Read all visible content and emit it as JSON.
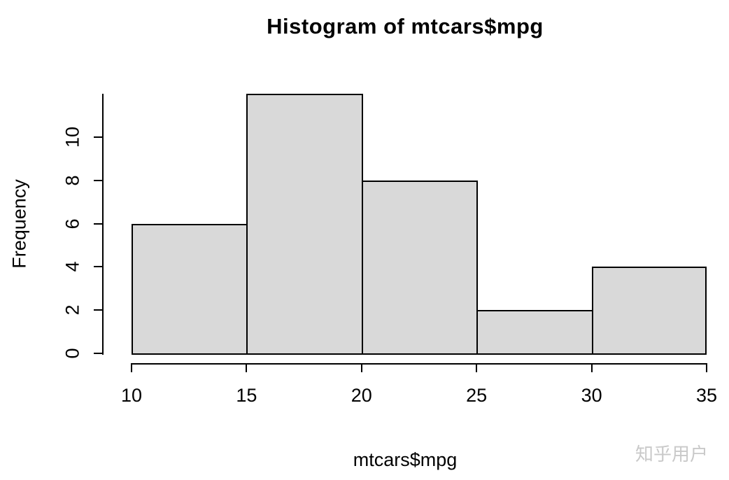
{
  "chart_data": {
    "type": "bar",
    "title": "Histogram of mtcars$mpg",
    "xlabel": "mtcars$mpg",
    "ylabel": "Frequency",
    "bins": [
      {
        "start": 10,
        "end": 15,
        "count": 6
      },
      {
        "start": 15,
        "end": 20,
        "count": 12
      },
      {
        "start": 20,
        "end": 25,
        "count": 8
      },
      {
        "start": 25,
        "end": 30,
        "count": 2
      },
      {
        "start": 30,
        "end": 35,
        "count": 4
      }
    ],
    "x_ticks": [
      "10",
      "15",
      "20",
      "25",
      "30",
      "35"
    ],
    "y_ticks": [
      "0",
      "2",
      "4",
      "6",
      "8",
      "10"
    ],
    "xlim": [
      10,
      35
    ],
    "ylim": [
      0,
      12
    ],
    "grid": false,
    "legend": null,
    "bar_fill": "#d9d9d9",
    "bar_border": "#000000",
    "axis_color": "#000000"
  },
  "watermark": {
    "text": "知乎用户",
    "color": "#c9c9c9"
  }
}
